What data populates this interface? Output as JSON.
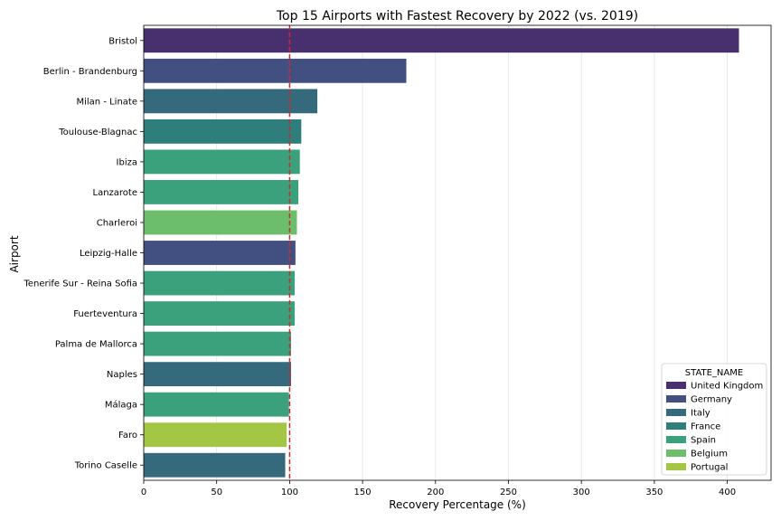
{
  "chart_data": {
    "type": "bar",
    "orientation": "horizontal",
    "title": "Top 15 Airports with Fastest Recovery by 2022 (vs. 2019)",
    "xlabel": "Recovery Percentage (%)",
    "ylabel": "Airport",
    "xlim": [
      0,
      430
    ],
    "xticks": [
      0,
      50,
      100,
      150,
      200,
      250,
      300,
      350,
      400
    ],
    "grid": "vertical",
    "reference_line": {
      "x": 100,
      "color": "#d62728",
      "style": "dashed"
    },
    "legend": {
      "title": "STATE_NAME",
      "placement": "lower-right",
      "entries": [
        {
          "name": "United Kingdom",
          "color": "#48306f"
        },
        {
          "name": "Germany",
          "color": "#414f81"
        },
        {
          "name": "Italy",
          "color": "#356a7d"
        },
        {
          "name": "France",
          "color": "#2e7f7c"
        },
        {
          "name": "Spain",
          "color": "#3aa17c"
        },
        {
          "name": "Belgium",
          "color": "#6cbe6c"
        },
        {
          "name": "Portugal",
          "color": "#a3c745"
        }
      ]
    },
    "bars": [
      {
        "airport": "Bristol",
        "value": 408,
        "state": "United Kingdom"
      },
      {
        "airport": "Berlin - Brandenburg",
        "value": 180,
        "state": "Germany"
      },
      {
        "airport": "Milan - Linate",
        "value": 119,
        "state": "Italy"
      },
      {
        "airport": "Toulouse-Blagnac",
        "value": 108,
        "state": "France"
      },
      {
        "airport": "Ibiza",
        "value": 107,
        "state": "Spain"
      },
      {
        "airport": "Lanzarote",
        "value": 106,
        "state": "Spain"
      },
      {
        "airport": "Charleroi",
        "value": 105,
        "state": "Belgium"
      },
      {
        "airport": "Leipzig-Halle",
        "value": 104,
        "state": "Germany"
      },
      {
        "airport": "Tenerife Sur - Reina Sofia",
        "value": 103.5,
        "state": "Spain"
      },
      {
        "airport": "Fuerteventura",
        "value": 103.5,
        "state": "Spain"
      },
      {
        "airport": "Palma de Mallorca",
        "value": 101,
        "state": "Spain"
      },
      {
        "airport": "Naples",
        "value": 101,
        "state": "Italy"
      },
      {
        "airport": "Málaga",
        "value": 99.5,
        "state": "Spain"
      },
      {
        "airport": "Faro",
        "value": 98,
        "state": "Portugal"
      },
      {
        "airport": "Torino Caselle",
        "value": 97,
        "state": "Italy"
      }
    ]
  }
}
